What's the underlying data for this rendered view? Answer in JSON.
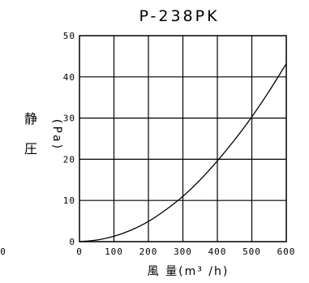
{
  "chart_data": {
    "type": "line",
    "title": "P-238PK",
    "xlabel": "風 量(m³ /h)",
    "ylabel_main": "静",
    "ylabel_second": "圧",
    "ylabel_unit": "(Pa)",
    "stray_label": "0",
    "xlim": [
      0,
      600
    ],
    "ylim": [
      0,
      50
    ],
    "x_ticks": [
      "0",
      "100",
      "200",
      "300",
      "400",
      "500",
      "600"
    ],
    "y_ticks": [
      "0",
      "10",
      "20",
      "30",
      "40",
      "50"
    ],
    "grid": true,
    "series": [
      {
        "x": [
          0,
          50,
          100,
          150,
          200,
          250,
          300,
          350,
          400,
          450,
          500,
          550,
          600
        ],
        "y": [
          0,
          0.4,
          1.3,
          2.8,
          4.9,
          7.7,
          11.0,
          15.0,
          19.6,
          24.7,
          30.3,
          36.5,
          43.2
        ]
      }
    ]
  }
}
